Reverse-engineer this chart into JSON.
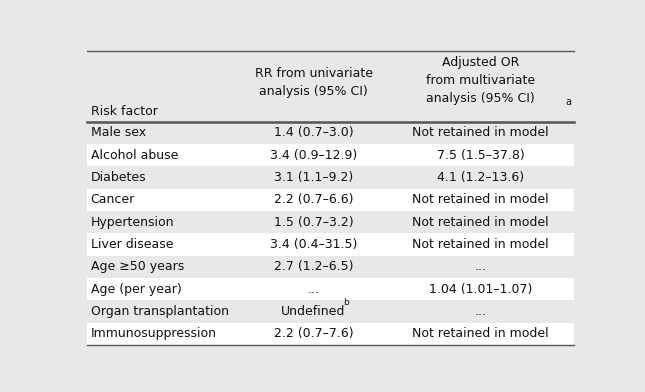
{
  "rows": [
    {
      "factor": "Male sex",
      "rr": "1.4 (0.7–3.0)",
      "or": "Not retained in model",
      "shade": true
    },
    {
      "factor": "Alcohol abuse",
      "rr": "3.4 (0.9–12.9)",
      "or": "7.5 (1.5–37.8)",
      "shade": false
    },
    {
      "factor": "Diabetes",
      "rr": "3.1 (1.1–9.2)",
      "or": "4.1 (1.2–13.6)",
      "shade": true
    },
    {
      "factor": "Cancer",
      "rr": "2.2 (0.7–6.6)",
      "or": "Not retained in model",
      "shade": false
    },
    {
      "factor": "Hypertension",
      "rr": "1.5 (0.7–3.2)",
      "or": "Not retained in model",
      "shade": true
    },
    {
      "factor": "Liver disease",
      "rr": "3.4 (0.4–31.5)",
      "or": "Not retained in model",
      "shade": false
    },
    {
      "factor": "Age ≥50 years",
      "rr": "2.7 (1.2–6.5)",
      "or": "...",
      "shade": true
    },
    {
      "factor": "Age (per year)",
      "rr": "...",
      "or": "1.04 (1.01–1.07)",
      "shade": false
    },
    {
      "factor": "Organ transplantation",
      "rr": "Undefined",
      "or": "...",
      "shade": true,
      "rr_super": "b"
    },
    {
      "factor": "Immunosuppression",
      "rr": "2.2 (0.7–7.6)",
      "or": "Not retained in model",
      "shade": false
    }
  ],
  "bg_color": "#e8e8e8",
  "white_color": "#ffffff",
  "line_color": "#555555",
  "text_color": "#111111",
  "font_size": 9.0,
  "header_font_size": 9.0,
  "fig_width": 6.45,
  "fig_height": 3.92,
  "dpi": 100
}
